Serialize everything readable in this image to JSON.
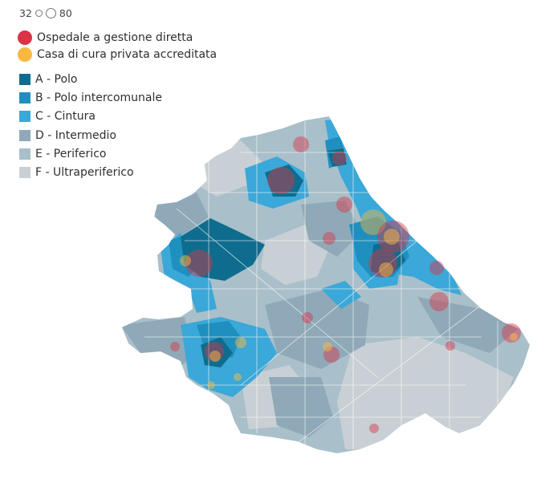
{
  "size_legend": {
    "min": "32",
    "max": "80"
  },
  "categories": [
    {
      "label": "Ospedale a gestione diretta",
      "color": "#d93344"
    },
    {
      "label": "Casa di cura privata accreditata",
      "color": "#f9b941"
    }
  ],
  "zones": [
    {
      "label": "A - Polo",
      "color": "#0e6d8e"
    },
    {
      "label": "B - Polo intercomunale",
      "color": "#1f8fbf"
    },
    {
      "label": "C - Cintura",
      "color": "#3aa8d8"
    },
    {
      "label": "D - Intermedio",
      "color": "#8fa9b8"
    },
    {
      "label": "E - Periferico",
      "color": "#a9bfca"
    },
    {
      "label": "F - Ultraperiferico",
      "color": "#c8d0d5"
    }
  ]
}
